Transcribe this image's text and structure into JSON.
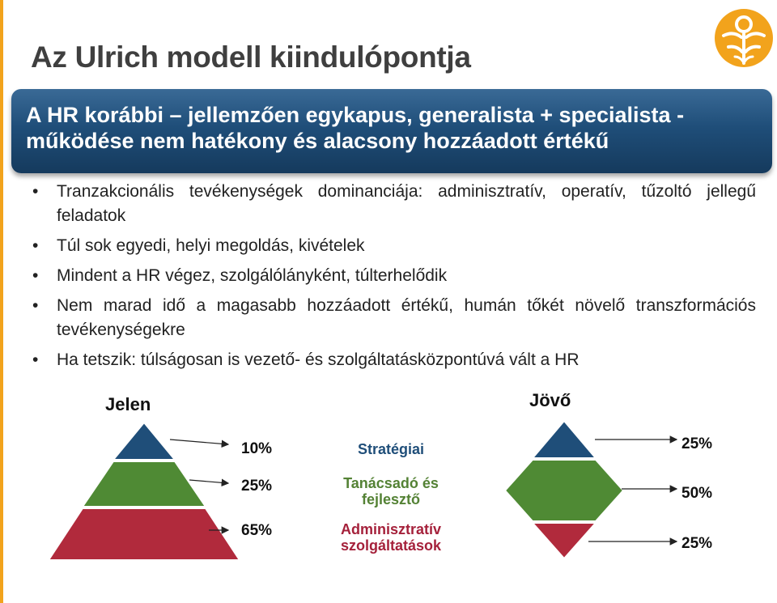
{
  "slide": {
    "title": "Az Ulrich modell kiindulópontja",
    "banner_line1": "A HR korábbi – jellemzően egykapus, generalista + specialista -",
    "banner_line2": "működése nem hatékony és alacsony hozzáadott értékű",
    "bullets": [
      "Tranzakcionális tevékenységek dominanciája: adminisztratív, operatív, tűzoltó jellegű feladatok",
      "Túl sok egyedi, helyi megoldás, kivételek",
      "Mindent a HR végez, szolgálólányként, túlterhelődik",
      "Nem marad idő a magasabb hozzáadott értékű, humán tőkét növelő transzformációs tevékenységekre",
      "Ha tetszik: túlságosan is vezető- és szolgáltatásközpontúvá vált a HR"
    ]
  },
  "diagram": {
    "present": {
      "label": "Jelen",
      "levels": [
        "10%",
        "25%",
        "65%"
      ]
    },
    "future": {
      "label": "Jövő",
      "levels": [
        "25%",
        "50%",
        "25%"
      ]
    },
    "categories": [
      {
        "text": "Stratégiai",
        "color": "#1f4e79"
      },
      {
        "text": "Tanácsadó és fejlesztő",
        "color": "#548235"
      },
      {
        "text": "Adminisztratív szolgáltatások",
        "color": "#a5213b"
      }
    ],
    "colors": {
      "top": "#1f4e79",
      "middle": "#4f8a34",
      "bottom": "#b12a3c"
    }
  },
  "icons": {
    "logo": "orange-person-logo-icon"
  },
  "colors": {
    "accent": "#f2a31c",
    "banner": "#1f4e79",
    "title": "#3f3f3f"
  }
}
